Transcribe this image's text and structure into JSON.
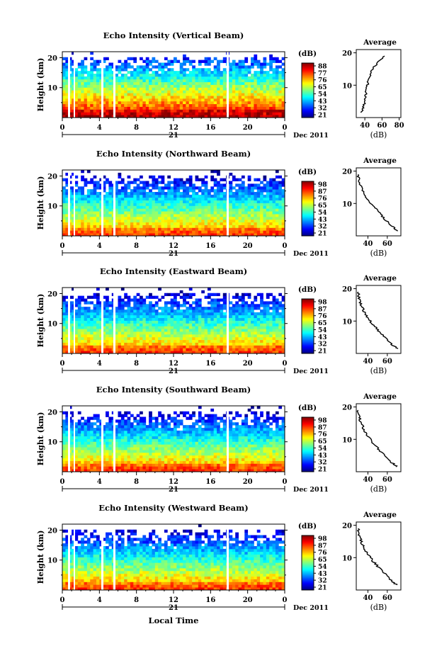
{
  "chart_data": [
    {
      "type": "heatmap",
      "title": "Echo Intensity (Vertical Beam)",
      "ylabel": "Height (km)",
      "yticks": [
        "20",
        "10"
      ],
      "xticks": [
        "0",
        "4",
        "8",
        "12",
        "16",
        "20",
        "0"
      ],
      "day_label": "21",
      "date_label": "Dec 2011",
      "colorbar": {
        "label": "(dB)",
        "ticks": [
          "88",
          "77",
          "76",
          "65",
          "54",
          "43",
          "32",
          "21"
        ]
      },
      "range_db": [
        21,
        88
      ],
      "profile": {
        "title": "Average",
        "xlabel": "(dB)",
        "xticks": [
          "40",
          "60",
          "80"
        ],
        "xlim": [
          30,
          82
        ],
        "points": [
          [
            36,
            1.5
          ],
          [
            38,
            3
          ],
          [
            40,
            5
          ],
          [
            41,
            7
          ],
          [
            42,
            9
          ],
          [
            44,
            11
          ],
          [
            46,
            13
          ],
          [
            49,
            15
          ],
          [
            55,
            17
          ],
          [
            63,
            19
          ]
        ]
      }
    },
    {
      "type": "heatmap",
      "title": "Echo Intensity (Northward Beam)",
      "ylabel": "Height (km)",
      "yticks": [
        "20",
        "10"
      ],
      "xticks": [
        "0",
        "4",
        "8",
        "12",
        "16",
        "20",
        "0"
      ],
      "day_label": "21",
      "date_label": "Dec 2011",
      "colorbar": {
        "label": "(dB)",
        "ticks": [
          "98",
          "87",
          "76",
          "65",
          "54",
          "43",
          "32",
          "21"
        ]
      },
      "range_db": [
        21,
        98
      ],
      "profile": {
        "title": "Average",
        "xlabel": "(dB)",
        "xticks": [
          "40",
          "60"
        ],
        "xlim": [
          28,
          74
        ],
        "points": [
          [
            70,
            1.5
          ],
          [
            65,
            3
          ],
          [
            58,
            5
          ],
          [
            52,
            7
          ],
          [
            46,
            9
          ],
          [
            40,
            11
          ],
          [
            36,
            13
          ],
          [
            33,
            15
          ],
          [
            31,
            17
          ],
          [
            30,
            19
          ]
        ]
      }
    },
    {
      "type": "heatmap",
      "title": "Echo Intensity (Eastward Beam)",
      "ylabel": "Height (km)",
      "yticks": [
        "20",
        "10"
      ],
      "xticks": [
        "0",
        "4",
        "8",
        "12",
        "16",
        "20",
        "0"
      ],
      "day_label": "21",
      "date_label": "Dec 2011",
      "colorbar": {
        "label": "(dB)",
        "ticks": [
          "98",
          "87",
          "76",
          "65",
          "54",
          "43",
          "32",
          "21"
        ]
      },
      "range_db": [
        21,
        98
      ],
      "profile": {
        "title": "Average",
        "xlabel": "(dB)",
        "xticks": [
          "40",
          "60"
        ],
        "xlim": [
          28,
          74
        ],
        "points": [
          [
            70,
            1.5
          ],
          [
            64,
            3
          ],
          [
            58,
            5
          ],
          [
            51,
            7
          ],
          [
            45,
            9
          ],
          [
            40,
            11
          ],
          [
            36,
            13
          ],
          [
            33,
            15
          ],
          [
            31,
            17
          ],
          [
            30,
            19
          ]
        ]
      }
    },
    {
      "type": "heatmap",
      "title": "Echo Intensity (Southward Beam)",
      "ylabel": "Height (km)",
      "yticks": [
        "20",
        "10"
      ],
      "xticks": [
        "0",
        "4",
        "8",
        "12",
        "16",
        "20",
        "0"
      ],
      "day_label": "21",
      "date_label": "Dec 2011",
      "colorbar": {
        "label": "(dB)",
        "ticks": [
          "98",
          "87",
          "76",
          "65",
          "54",
          "43",
          "32",
          "21"
        ]
      },
      "range_db": [
        21,
        98
      ],
      "profile": {
        "title": "Average",
        "xlabel": "(dB)",
        "xticks": [
          "40",
          "60"
        ],
        "xlim": [
          28,
          74
        ],
        "points": [
          [
            70,
            1.5
          ],
          [
            64,
            3
          ],
          [
            57,
            5
          ],
          [
            51,
            7
          ],
          [
            45,
            9
          ],
          [
            40,
            11
          ],
          [
            36,
            13
          ],
          [
            33,
            15
          ],
          [
            31,
            17
          ],
          [
            30,
            19
          ]
        ]
      }
    },
    {
      "type": "heatmap",
      "title": "Echo Intensity (Westward Beam)",
      "ylabel": "Height (km)",
      "yticks": [
        "20",
        "10"
      ],
      "xticks": [
        "0",
        "4",
        "8",
        "12",
        "16",
        "20",
        "0"
      ],
      "day_label": "21",
      "date_label": "Dec 2011",
      "colorbar": {
        "label": "(dB)",
        "ticks": [
          "98",
          "87",
          "76",
          "65",
          "54",
          "43",
          "32",
          "21"
        ]
      },
      "range_db": [
        21,
        98
      ],
      "profile": {
        "title": "Average",
        "xlabel": "(dB)",
        "xticks": [
          "40",
          "60"
        ],
        "xlim": [
          28,
          74
        ],
        "points": [
          [
            70,
            1.5
          ],
          [
            64,
            3
          ],
          [
            58,
            5
          ],
          [
            51,
            7
          ],
          [
            45,
            9
          ],
          [
            40,
            11
          ],
          [
            36,
            13
          ],
          [
            33,
            15
          ],
          [
            31,
            17
          ],
          [
            30,
            19
          ]
        ]
      }
    }
  ],
  "xlabel": "Local Time"
}
